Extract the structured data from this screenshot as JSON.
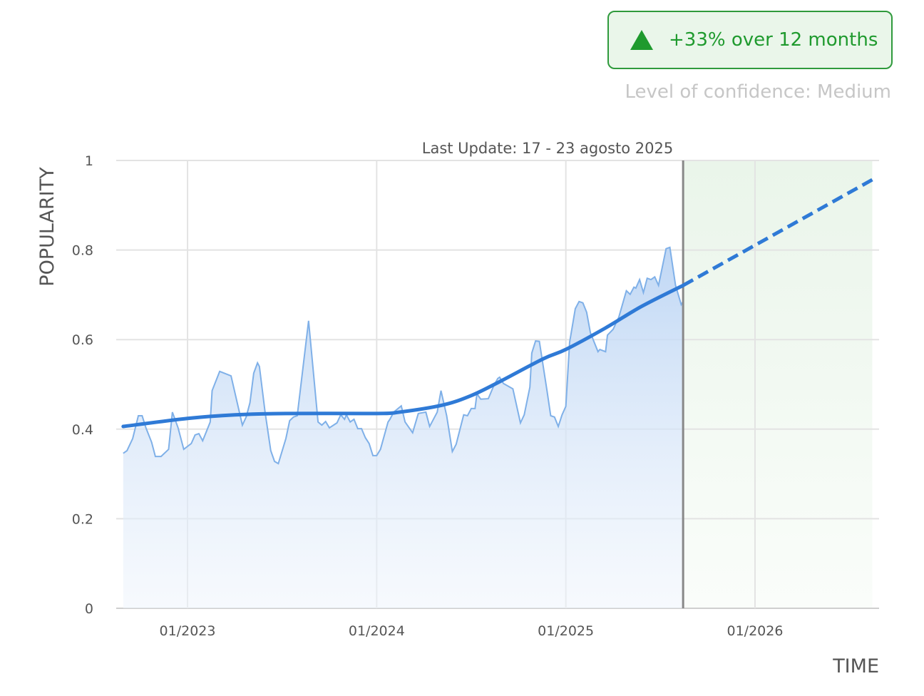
{
  "badge": {
    "text": "+33% over 12 months",
    "icon": "triangle-up-icon",
    "color": "#1f9a2e"
  },
  "confidence": "Level of confidence: Medium",
  "chart_data": {
    "type": "area",
    "title": "Last Update: 17 - 23 agosto 2025",
    "xlabel": "TIME",
    "ylabel": "POPULARITY",
    "xlim": [
      2022.623,
      2026.656
    ],
    "ylim": [
      0,
      1
    ],
    "yticks": [
      0,
      0.2,
      0.4,
      0.6,
      0.8,
      1
    ],
    "ytick_labels": [
      "0",
      "0.2",
      "0.4",
      "0.6",
      "0.8",
      "1"
    ],
    "xticks": [
      2023,
      2024,
      2025,
      2026
    ],
    "xtick_labels": [
      "01/2023",
      "01/2024",
      "01/2025",
      "01/2026"
    ],
    "grid": true,
    "last_update": 2025.62,
    "series": [
      {
        "name": "popularity",
        "color": "#7fb0e8",
        "x": [
          2022.66,
          2022.68,
          2022.71,
          2022.74,
          2022.76,
          2022.78,
          2022.81,
          2022.83,
          2022.86,
          2022.9,
          2022.92,
          2022.95,
          2022.98,
          2023.02,
          2023.04,
          2023.06,
          2023.08,
          2023.1,
          2023.12,
          2023.13,
          2023.17,
          2023.2,
          2023.23,
          2023.29,
          2023.31,
          2023.33,
          2023.35,
          2023.37,
          2023.38,
          2023.41,
          2023.44,
          2023.46,
          2023.48,
          2023.52,
          2023.54,
          2023.56,
          2023.58,
          2023.64,
          2023.69,
          2023.71,
          2023.73,
          2023.75,
          2023.79,
          2023.81,
          2023.83,
          2023.84,
          2023.86,
          2023.88,
          2023.9,
          2023.92,
          2023.94,
          2023.96,
          2023.98,
          2024.0,
          2024.02,
          2024.06,
          2024.07,
          2024.09,
          2024.13,
          2024.15,
          2024.19,
          2024.22,
          2024.26,
          2024.28,
          2024.32,
          2024.34,
          2024.37,
          2024.4,
          2024.42,
          2024.46,
          2024.48,
          2024.5,
          2024.52,
          2024.53,
          2024.55,
          2024.59,
          2024.62,
          2024.64,
          2024.65,
          2024.67,
          2024.72,
          2024.76,
          2024.78,
          2024.81,
          2024.82,
          2024.84,
          2024.86,
          2024.9,
          2024.92,
          2024.94,
          2024.96,
          2024.98,
          2025.0,
          2025.02,
          2025.05,
          2025.07,
          2025.09,
          2025.11,
          2025.13,
          2025.17,
          2025.18,
          2025.21,
          2025.22,
          2025.25,
          2025.28,
          2025.32,
          2025.34,
          2025.36,
          2025.37,
          2025.39,
          2025.41,
          2025.43,
          2025.45,
          2025.47,
          2025.49,
          2025.53,
          2025.55,
          2025.58,
          2025.61,
          2025.62
        ],
        "y": [
          0.346,
          0.352,
          0.379,
          0.43,
          0.43,
          0.403,
          0.371,
          0.339,
          0.339,
          0.355,
          0.438,
          0.403,
          0.355,
          0.368,
          0.387,
          0.39,
          0.374,
          0.395,
          0.416,
          0.486,
          0.529,
          0.524,
          0.519,
          0.409,
          0.427,
          0.459,
          0.525,
          0.548,
          0.54,
          0.438,
          0.352,
          0.328,
          0.323,
          0.379,
          0.419,
          0.427,
          0.43,
          0.642,
          0.416,
          0.409,
          0.417,
          0.403,
          0.414,
          0.432,
          0.422,
          0.432,
          0.416,
          0.422,
          0.401,
          0.401,
          0.381,
          0.368,
          0.341,
          0.341,
          0.355,
          0.416,
          0.422,
          0.438,
          0.452,
          0.416,
          0.392,
          0.435,
          0.438,
          0.406,
          0.438,
          0.486,
          0.43,
          0.35,
          0.366,
          0.432,
          0.43,
          0.446,
          0.446,
          0.479,
          0.467,
          0.468,
          0.498,
          0.513,
          0.516,
          0.502,
          0.49,
          0.414,
          0.432,
          0.494,
          0.57,
          0.597,
          0.596,
          0.487,
          0.43,
          0.427,
          0.406,
          0.432,
          0.451,
          0.594,
          0.669,
          0.685,
          0.682,
          0.661,
          0.615,
          0.573,
          0.578,
          0.573,
          0.61,
          0.623,
          0.65,
          0.709,
          0.701,
          0.717,
          0.715,
          0.734,
          0.705,
          0.737,
          0.734,
          0.74,
          0.721,
          0.803,
          0.806,
          0.721,
          0.678,
          0.685
        ]
      },
      {
        "name": "trend",
        "color": "#2f7ad6",
        "x": [
          2022.66,
          2023.0,
          2023.25,
          2023.52,
          2024.0,
          2024.12,
          2024.35,
          2024.5,
          2024.65,
          2024.88,
          2025.0,
          2025.21,
          2025.4,
          2025.62
        ],
        "y": [
          0.406,
          0.424,
          0.432,
          0.435,
          0.435,
          0.438,
          0.454,
          0.475,
          0.506,
          0.557,
          0.578,
          0.626,
          0.674,
          0.721
        ]
      },
      {
        "name": "forecast",
        "color": "#2f7ad6",
        "dashed": true,
        "x": [
          2025.62,
          2026.62
        ],
        "y": [
          0.721,
          0.957
        ]
      }
    ],
    "forecast_region": [
      2025.62,
      2026.62
    ]
  }
}
